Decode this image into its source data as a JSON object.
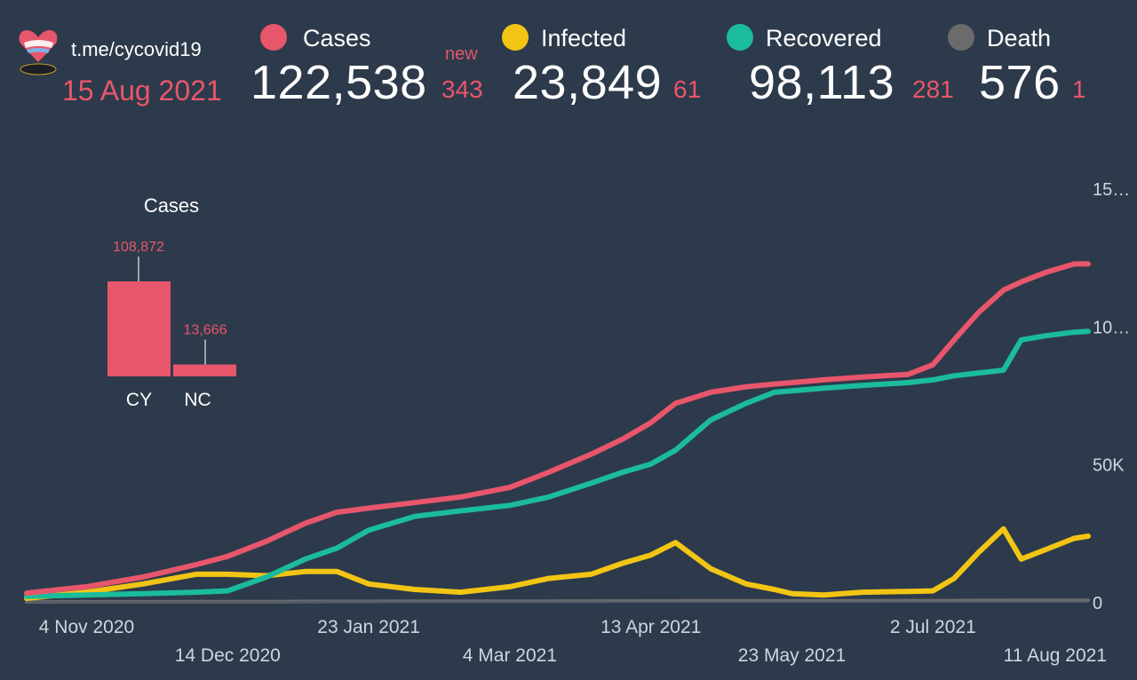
{
  "header": {
    "source": "t.me/cycovid19",
    "date": "15 Aug 2021",
    "new_label": "new",
    "stats": [
      {
        "key": "cases",
        "label": "Cases",
        "total": "122,538",
        "new": "343",
        "color": "#e8566b"
      },
      {
        "key": "infected",
        "label": "Infected",
        "total": "23,849",
        "new": "61",
        "color": "#f2c514"
      },
      {
        "key": "recovered",
        "label": "Recovered",
        "total": "98,113",
        "new": "281",
        "color": "#1bbc9b"
      },
      {
        "key": "death",
        "label": "Death",
        "total": "576",
        "new": "1",
        "color": "#6b6b6b"
      }
    ]
  },
  "inset": {
    "title": "Cases",
    "bars": [
      {
        "label": "CY",
        "value": 108872,
        "value_label": "108,872"
      },
      {
        "label": "NC",
        "value": 13666,
        "value_label": "13,666"
      }
    ],
    "color": "#e8566b"
  },
  "chart_data": {
    "type": "line",
    "x_labels_top": [
      "4 Nov 2020",
      "23 Jan 2021",
      "13 Apr 2021",
      "2 Jul 2021"
    ],
    "x_labels_bottom": [
      "14 Dec 2020",
      "4 Mar 2021",
      "23 May 2021",
      "11 Aug 2021"
    ],
    "y_ticks": [
      "0",
      "50K",
      "10…",
      "15…"
    ],
    "ylim": [
      0,
      150000
    ],
    "grid": false,
    "x": [
      "2020-10-18",
      "2020-11-04",
      "2020-11-20",
      "2020-12-05",
      "2020-12-14",
      "2020-12-25",
      "2021-01-05",
      "2021-01-14",
      "2021-01-23",
      "2021-02-05",
      "2021-02-18",
      "2021-03-04",
      "2021-03-15",
      "2021-03-27",
      "2021-04-05",
      "2021-04-13",
      "2021-04-20",
      "2021-04-30",
      "2021-05-10",
      "2021-05-18",
      "2021-05-23",
      "2021-06-01",
      "2021-06-12",
      "2021-06-25",
      "2021-07-02",
      "2021-07-08",
      "2021-07-15",
      "2021-07-22",
      "2021-07-27",
      "2021-08-03",
      "2021-08-11",
      "2021-08-15"
    ],
    "series": [
      {
        "name": "Cases",
        "color": "#e8566b",
        "values": [
          3200,
          5500,
          9000,
          13500,
          16500,
          22000,
          28500,
          32500,
          34000,
          36000,
          38000,
          41500,
          47000,
          53500,
          59000,
          65000,
          72000,
          76000,
          78000,
          79000,
          79500,
          80500,
          81500,
          82500,
          86000,
          95000,
          105000,
          113000,
          116000,
          119500,
          122500,
          122538
        ]
      },
      {
        "name": "Recovered",
        "color": "#1bbc9b",
        "values": [
          2000,
          2500,
          3000,
          3500,
          4000,
          9000,
          15500,
          19500,
          26000,
          31000,
          33000,
          35000,
          38000,
          43000,
          47000,
          50000,
          55000,
          66000,
          72000,
          76000,
          76500,
          77500,
          78500,
          79500,
          80500,
          82000,
          83000,
          84000,
          95000,
          96500,
          97800,
          98113
        ]
      },
      {
        "name": "Infected",
        "color": "#f2c514",
        "values": [
          1300,
          3500,
          6500,
          10000,
          10000,
          9500,
          11000,
          11000,
          6500,
          4500,
          3500,
          5500,
          8500,
          10000,
          14000,
          17000,
          21500,
          12000,
          6500,
          4500,
          3000,
          2500,
          3500,
          3800,
          4000,
          8500,
          18000,
          26500,
          15500,
          19000,
          23000,
          23849
        ]
      },
      {
        "name": "Death",
        "color": "#6b6b6b",
        "values": [
          20,
          30,
          40,
          50,
          60,
          100,
          150,
          180,
          200,
          220,
          240,
          250,
          270,
          300,
          320,
          340,
          360,
          380,
          400,
          410,
          415,
          420,
          430,
          440,
          450,
          470,
          500,
          530,
          550,
          565,
          575,
          576
        ]
      }
    ]
  }
}
